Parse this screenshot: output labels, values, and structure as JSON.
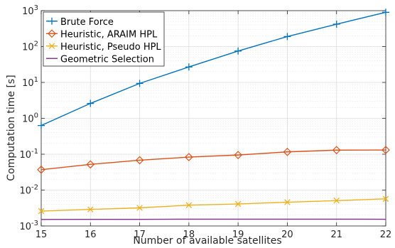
{
  "chart_data": {
    "type": "line",
    "title": "",
    "xlabel": "Number of available satellites",
    "ylabel": "Computation time [s]",
    "xlim": [
      15,
      22
    ],
    "ylim": [
      0.001,
      1000
    ],
    "yscale": "log",
    "x": [
      15,
      16,
      17,
      18,
      19,
      20,
      21,
      22
    ],
    "x_tick_labels": [
      "15",
      "16",
      "17",
      "18",
      "19",
      "20",
      "21",
      "22"
    ],
    "y_ticks": [
      {
        "value": 0.001,
        "base": "10",
        "exp": "-3"
      },
      {
        "value": 0.01,
        "base": "10",
        "exp": "-2"
      },
      {
        "value": 0.1,
        "base": "10",
        "exp": "-1"
      },
      {
        "value": 1,
        "base": "10",
        "exp": "0"
      },
      {
        "value": 10,
        "base": "10",
        "exp": "1"
      },
      {
        "value": 100,
        "base": "10",
        "exp": "2"
      },
      {
        "value": 1000,
        "base": "10",
        "exp": "3"
      }
    ],
    "grid": true,
    "minor_grid": true,
    "legend_position": "top-left",
    "series": [
      {
        "name": "Brute Force",
        "color": "#0072BD",
        "marker": "plus",
        "values": [
          0.63,
          2.6,
          9.4,
          27,
          75,
          190,
          420,
          900
        ]
      },
      {
        "name": "Heuristic, ARAIM HPL",
        "color": "#D95319",
        "marker": "diamond",
        "values": [
          0.037,
          0.052,
          0.068,
          0.083,
          0.095,
          0.116,
          0.13,
          0.131
        ]
      },
      {
        "name": "Heuristic, Pseudo HPL",
        "color": "#EDB120",
        "marker": "x",
        "values": [
          0.0026,
          0.0029,
          0.0032,
          0.0038,
          0.0041,
          0.0046,
          0.0051,
          0.0057
        ]
      },
      {
        "name": "Geometric Selection",
        "color": "#7E2F8E",
        "marker": "none",
        "values": [
          0.00152,
          0.00153,
          0.00153,
          0.00155,
          0.00155,
          0.00155,
          0.00155,
          0.00154
        ]
      }
    ]
  }
}
